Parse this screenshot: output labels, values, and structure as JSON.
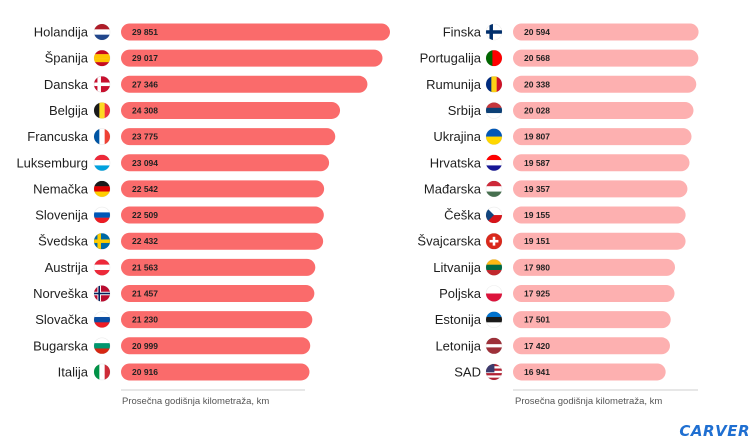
{
  "chart_data": [
    {
      "type": "bar",
      "orientation": "horizontal",
      "xlabel": "Prosečna godišnja kilometraža, km",
      "bar_color": "#fa6b6b",
      "categories": [
        "Holandija",
        "Španija",
        "Danska",
        "Belgija",
        "Francuska",
        "Luksemburg",
        "Nemačka",
        "Slovenija",
        "Švedska",
        "Austrija",
        "Norveška",
        "Slovačka",
        "Bugarska",
        "Italija"
      ],
      "values": [
        29851,
        29017,
        27346,
        24308,
        23775,
        23094,
        22542,
        22509,
        22432,
        21563,
        21457,
        21230,
        20999,
        20916
      ],
      "value_labels": [
        "29 851",
        "29 017",
        "27 346",
        "24 308",
        "23 775",
        "23 094",
        "22 542",
        "22 509",
        "22 432",
        "21 563",
        "21 457",
        "21 230",
        "20 999",
        "20 916"
      ],
      "flags": [
        "netherlands-flag",
        "spain-flag",
        "denmark-flag",
        "belgium-flag",
        "france-flag",
        "luxembourg-flag",
        "germany-flag",
        "slovenia-flag",
        "sweden-flag",
        "austria-flag",
        "norway-flag",
        "slovakia-flag",
        "bulgaria-flag",
        "italy-flag"
      ]
    },
    {
      "type": "bar",
      "orientation": "horizontal",
      "xlabel": "Prosečna godišnja kilometraža, km",
      "bar_color": "#fdb0b0",
      "categories": [
        "Finska",
        "Portugalija",
        "Rumunija",
        "Srbija",
        "Ukrajina",
        "Hrvatska",
        "Mađarska",
        "Češka",
        "Švajcarska",
        "Litvanija",
        "Poljska",
        "Estonija",
        "Letonija",
        "SAD"
      ],
      "values": [
        20594,
        20568,
        20338,
        20028,
        19807,
        19587,
        19357,
        19155,
        19151,
        17980,
        17925,
        17501,
        17420,
        16941
      ],
      "value_labels": [
        "20 594",
        "20 568",
        "20 338",
        "20 028",
        "19 807",
        "19 587",
        "19 357",
        "19 155",
        "19 151",
        "17 980",
        "17 925",
        "17 501",
        "17 420",
        "16 941"
      ],
      "flags": [
        "finland-flag",
        "portugal-flag",
        "romania-flag",
        "serbia-flag",
        "ukraine-flag",
        "croatia-flag",
        "hungary-flag",
        "czechia-flag",
        "switzerland-flag",
        "lithuania-flag",
        "poland-flag",
        "estonia-flag",
        "latvia-flag",
        "usa-flag"
      ]
    }
  ],
  "brand": "CARVER"
}
